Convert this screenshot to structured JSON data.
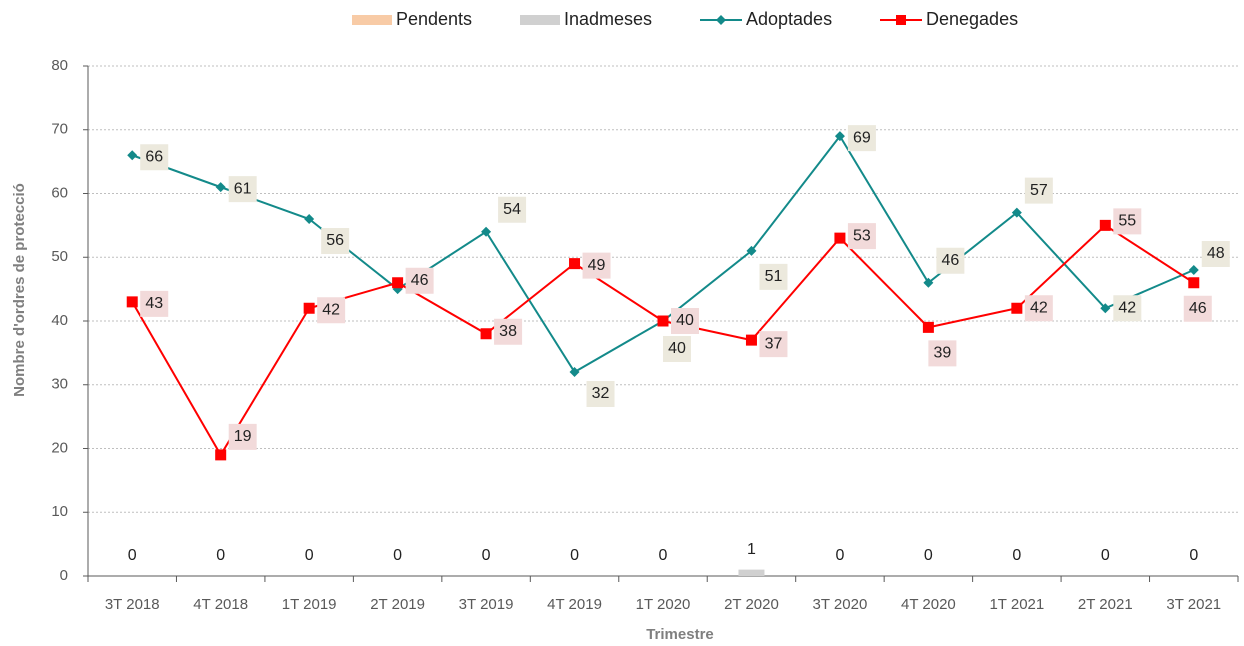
{
  "chart_data": {
    "type": "line",
    "x_label": "Trimestre",
    "y_label": "Nombre d'ordres de protecció",
    "categories": [
      "3T 2018",
      "4T 2018",
      "1T 2019",
      "2T 2019",
      "3T 2019",
      "4T 2019",
      "1T 2020",
      "2T 2020",
      "3T 2020",
      "4T 2020",
      "1T 2021",
      "2T 2021",
      "3T 2021"
    ],
    "ylim": [
      0,
      80
    ],
    "yticks": [
      0,
      10,
      20,
      30,
      40,
      50,
      60,
      70,
      80
    ],
    "grid": true,
    "legend": "top",
    "series": [
      {
        "name": "Pendents",
        "kind": "bar",
        "color": "#f8cba6",
        "values": [
          0,
          0,
          0,
          0,
          0,
          0,
          0,
          0,
          0,
          0,
          0,
          0,
          0
        ]
      },
      {
        "name": "Inadmeses",
        "kind": "bar",
        "color": "#d0d0d0",
        "values": [
          0,
          0,
          0,
          0,
          0,
          0,
          0,
          1,
          0,
          0,
          0,
          0,
          0
        ],
        "show_labels": true
      },
      {
        "name": "Adoptades",
        "kind": "line",
        "marker": "diamond",
        "color": "#138a8a",
        "values": [
          66,
          61,
          56,
          45,
          54,
          32,
          40,
          51,
          69,
          46,
          57,
          42,
          48
        ],
        "value_labels": [
          "66",
          "61",
          "56",
          null,
          "54",
          "32",
          "40",
          "51",
          "69",
          "46",
          "57",
          "42",
          "48"
        ],
        "show_labels": true,
        "label_bg": "#ece9dd"
      },
      {
        "name": "Denegades",
        "kind": "line",
        "marker": "square",
        "color": "#ff0000",
        "values": [
          43,
          19,
          42,
          46,
          38,
          49,
          40,
          37,
          53,
          39,
          42,
          55,
          46
        ],
        "show_labels": true,
        "label_bg": "#f2dada"
      }
    ]
  }
}
